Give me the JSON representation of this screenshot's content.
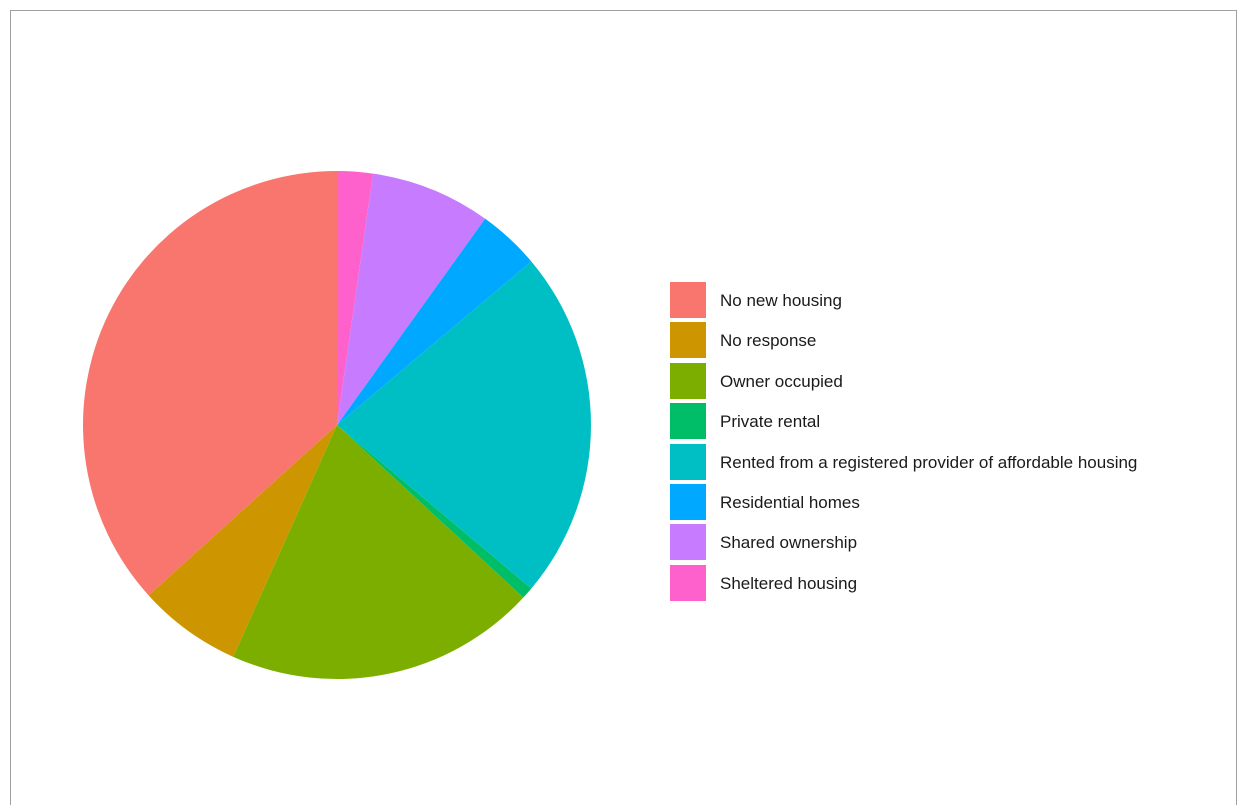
{
  "chart_data": {
    "type": "pie",
    "categories": [
      "No new housing",
      "No response",
      "Owner occupied",
      "Private rental",
      "Rented from a registered provider of affordable housing",
      "Residential homes",
      "Shared ownership",
      "Sheltered housing"
    ],
    "values": [
      38.9,
      7.0,
      21.0,
      0.8,
      23.6,
      4.2,
      8.1,
      2.4
    ],
    "unit": "percent (estimated)",
    "colors": [
      "#F8766D",
      "#CD9600",
      "#7CAE00",
      "#00BE67",
      "#00BFC4",
      "#00A9FF",
      "#C77CFF",
      "#FF61CC"
    ],
    "start": "12 o'clock",
    "direction": "counter-clockwise",
    "title": "",
    "legend": {
      "position": "right"
    }
  }
}
